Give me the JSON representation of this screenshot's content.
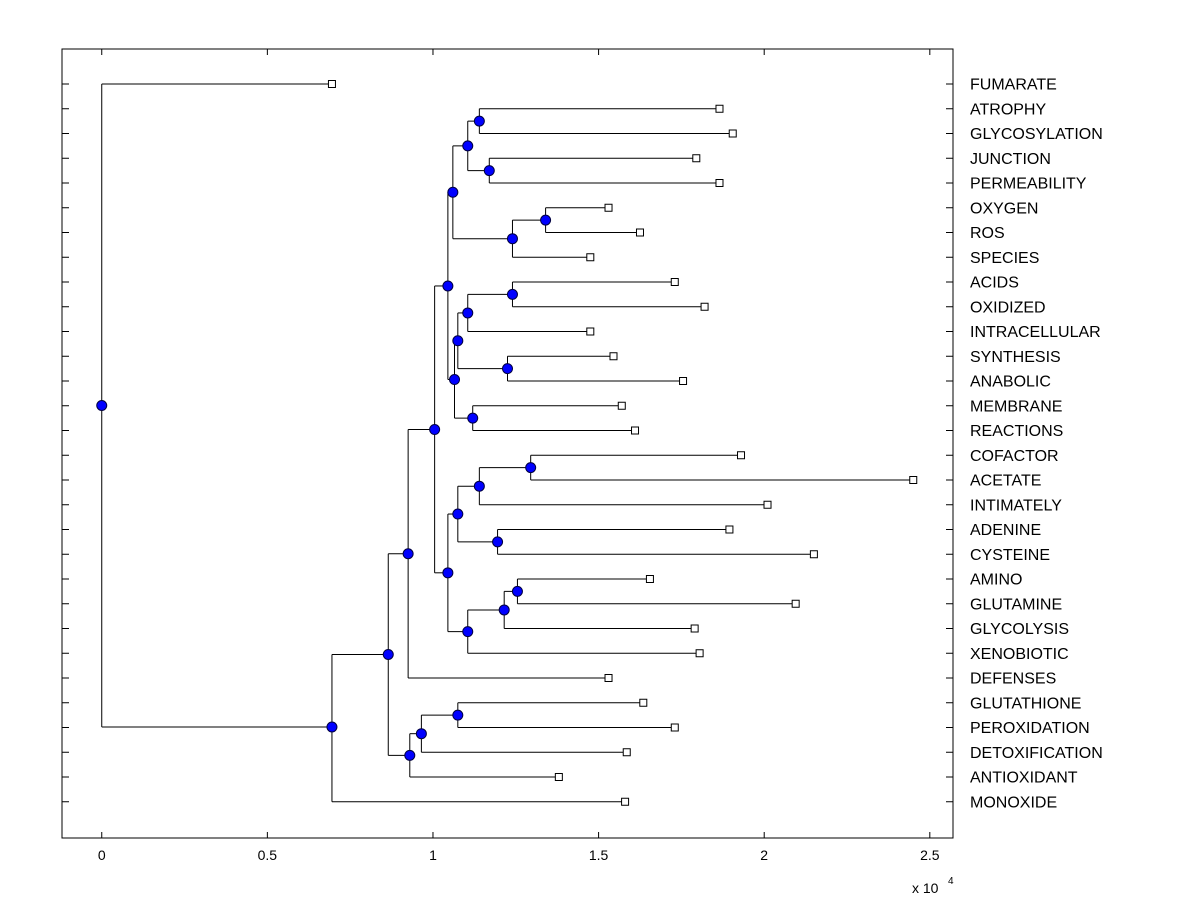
{
  "chart_data": {
    "type": "dendrogram",
    "orientation": "horizontal",
    "x_exponent_label": "x 10",
    "x_exponent_power": "4",
    "xlim": [
      -1200,
      25700
    ],
    "xticks": [
      0,
      5000,
      10000,
      15000,
      20000,
      25000
    ],
    "xtick_labels": [
      "0",
      "0.5",
      "1",
      "1.5",
      "2",
      "2.5"
    ],
    "n_rows": 30,
    "leaves": [
      {
        "name": "FUMARATE",
        "x": 6950
      },
      {
        "name": "ATROPHY",
        "x": 18650
      },
      {
        "name": "GLYCOSYLATION",
        "x": 19050
      },
      {
        "name": "JUNCTION",
        "x": 17950
      },
      {
        "name": "PERMEABILITY",
        "x": 18650
      },
      {
        "name": "OXYGEN",
        "x": 15300
      },
      {
        "name": "ROS",
        "x": 16250
      },
      {
        "name": "SPECIES",
        "x": 14750
      },
      {
        "name": "ACIDS",
        "x": 17300
      },
      {
        "name": "OXIDIZED",
        "x": 18200
      },
      {
        "name": "INTRACELLULAR",
        "x": 14750
      },
      {
        "name": "SYNTHESIS",
        "x": 15450
      },
      {
        "name": "ANABOLIC",
        "x": 17550
      },
      {
        "name": "MEMBRANE",
        "x": 15700
      },
      {
        "name": "REACTIONS",
        "x": 16100
      },
      {
        "name": "COFACTOR",
        "x": 19300
      },
      {
        "name": "ACETATE",
        "x": 24500
      },
      {
        "name": "INTIMATELY",
        "x": 20100
      },
      {
        "name": "ADENINE",
        "x": 18950
      },
      {
        "name": "CYSTEINE",
        "x": 21500
      },
      {
        "name": "AMINO",
        "x": 16550
      },
      {
        "name": "GLUTAMINE",
        "x": 20950
      },
      {
        "name": "GLYCOLYSIS",
        "x": 17900
      },
      {
        "name": "XENOBIOTIC",
        "x": 18050
      },
      {
        "name": "DEFENSES",
        "x": 15300
      },
      {
        "name": "GLUTATHIONE",
        "x": 16350
      },
      {
        "name": "PEROXIDATION",
        "x": 17300
      },
      {
        "name": "DETOXIFICATION",
        "x": 15850
      },
      {
        "name": "ANTIOXIDANT",
        "x": 13800
      },
      {
        "name": "MONOXIDE",
        "x": 15800
      }
    ],
    "nodes": [
      {
        "id": "n1",
        "x": 11400,
        "y": 1.5,
        "children": [
          "L1",
          "L2"
        ]
      },
      {
        "id": "n2",
        "x": 11700,
        "y": 3.5,
        "children": [
          "L3",
          "L4"
        ]
      },
      {
        "id": "n3",
        "x": 11050,
        "y": 2.5,
        "children": [
          "n1",
          "n2"
        ]
      },
      {
        "id": "n4",
        "x": 13400,
        "y": 5.5,
        "children": [
          "L5",
          "L6"
        ]
      },
      {
        "id": "n5",
        "x": 12400,
        "y": 6.25,
        "children": [
          "n4",
          "L7"
        ]
      },
      {
        "id": "n6",
        "x": 10600,
        "y": 4.375,
        "children": [
          "n3",
          "n5"
        ]
      },
      {
        "id": "n7",
        "x": 12400,
        "y": 8.5,
        "children": [
          "L8",
          "L9"
        ]
      },
      {
        "id": "n8",
        "x": 11050,
        "y": 9.25,
        "children": [
          "n7",
          "L10"
        ]
      },
      {
        "id": "n9",
        "x": 12250,
        "y": 11.5,
        "children": [
          "L11",
          "L12"
        ]
      },
      {
        "id": "n10",
        "x": 10750,
        "y": 10.375,
        "children": [
          "n8",
          "n9"
        ]
      },
      {
        "id": "n11",
        "x": 11200,
        "y": 13.5,
        "children": [
          "L13",
          "L14"
        ]
      },
      {
        "id": "n12",
        "x": 10650,
        "y": 11.94,
        "children": [
          "n10",
          "n11"
        ]
      },
      {
        "id": "n13",
        "x": 10450,
        "y": 8.16,
        "children": [
          "n6",
          "n12"
        ]
      },
      {
        "id": "n14",
        "x": 12950,
        "y": 15.5,
        "children": [
          "L15",
          "L16"
        ]
      },
      {
        "id": "n15",
        "x": 11400,
        "y": 16.25,
        "children": [
          "n14",
          "L17"
        ]
      },
      {
        "id": "n16",
        "x": 11950,
        "y": 18.5,
        "children": [
          "L18",
          "L19"
        ]
      },
      {
        "id": "n17",
        "x": 10750,
        "y": 17.375,
        "children": [
          "n15",
          "n16"
        ]
      },
      {
        "id": "n18",
        "x": 12550,
        "y": 20.5,
        "children": [
          "L20",
          "L21"
        ]
      },
      {
        "id": "n19",
        "x": 12150,
        "y": 21.25,
        "children": [
          "n18",
          "L22"
        ]
      },
      {
        "id": "n20",
        "x": 11050,
        "y": 22.125,
        "children": [
          "n19",
          "L23"
        ]
      },
      {
        "id": "n21",
        "x": 10450,
        "y": 19.75,
        "children": [
          "n17",
          "n20"
        ]
      },
      {
        "id": "n22",
        "x": 10050,
        "y": 13.96,
        "children": [
          "n13",
          "n21"
        ]
      },
      {
        "id": "n23",
        "x": 9250,
        "y": 18.98,
        "children": [
          "n22",
          "L24"
        ]
      },
      {
        "id": "n24",
        "x": 10750,
        "y": 25.5,
        "children": [
          "L25",
          "L26"
        ]
      },
      {
        "id": "n25",
        "x": 9650,
        "y": 26.25,
        "children": [
          "n24",
          "L27"
        ]
      },
      {
        "id": "n26",
        "x": 9300,
        "y": 27.125,
        "children": [
          "n25",
          "L28"
        ]
      },
      {
        "id": "n27",
        "x": 8650,
        "y": 23.05,
        "children": [
          "n23",
          "n26"
        ]
      },
      {
        "id": "n28",
        "x": 6950,
        "y": 25.98,
        "children": [
          "n27",
          "L29"
        ]
      },
      {
        "id": "n29",
        "x": 0,
        "y": 12.99,
        "children": [
          "L0",
          "n28"
        ]
      }
    ],
    "colors": {
      "node_fill": "#0000ff",
      "node_stroke": "#000040",
      "line": "#000000",
      "leaf_marker_fill": "#ffffff",
      "background": "#ffffff"
    }
  }
}
